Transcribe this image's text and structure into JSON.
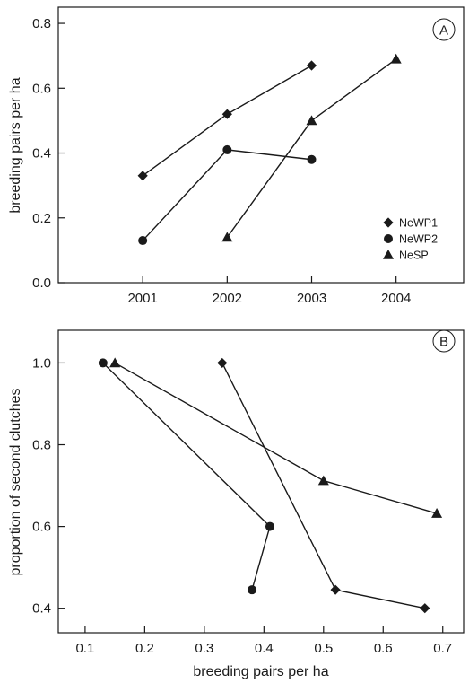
{
  "chart_data": [
    {
      "panel_label": "A",
      "type": "line",
      "xlabel": "",
      "ylabel": "breeding pairs per ha",
      "x_ticks": [
        "2001",
        "2002",
        "2003",
        "2004"
      ],
      "y_ticks": [
        "0.0",
        "0.2",
        "0.4",
        "0.6",
        "0.8"
      ],
      "xlim": [
        2000,
        2004.8
      ],
      "ylim": [
        0,
        0.85
      ],
      "legend_position": "right-middle",
      "series": [
        {
          "name": "NeWP1",
          "marker": "diamond",
          "points": [
            {
              "x": 2001,
              "y": 0.33
            },
            {
              "x": 2002,
              "y": 0.52
            },
            {
              "x": 2003,
              "y": 0.67
            }
          ]
        },
        {
          "name": "NeWP2",
          "marker": "circle",
          "points": [
            {
              "x": 2001,
              "y": 0.13
            },
            {
              "x": 2002,
              "y": 0.41
            },
            {
              "x": 2003,
              "y": 0.38
            }
          ]
        },
        {
          "name": "NeSP",
          "marker": "triangle",
          "points": [
            {
              "x": 2002,
              "y": 0.14
            },
            {
              "x": 2003,
              "y": 0.5
            },
            {
              "x": 2004,
              "y": 0.69
            }
          ]
        }
      ]
    },
    {
      "panel_label": "B",
      "type": "line",
      "xlabel": "breeding pairs per ha",
      "ylabel": "proportion of second clutches",
      "x_ticks": [
        "0.1",
        "0.2",
        "0.3",
        "0.4",
        "0.5",
        "0.6",
        "0.7"
      ],
      "y_ticks": [
        "0.4",
        "0.6",
        "0.8",
        "1.0"
      ],
      "xlim": [
        0.055,
        0.735
      ],
      "ylim": [
        0.34,
        1.08
      ],
      "series": [
        {
          "name": "NeWP1",
          "marker": "diamond",
          "points": [
            {
              "x": 0.33,
              "y": 1.0
            },
            {
              "x": 0.52,
              "y": 0.445
            },
            {
              "x": 0.67,
              "y": 0.4
            }
          ]
        },
        {
          "name": "NeWP2",
          "marker": "circle",
          "points": [
            {
              "x": 0.13,
              "y": 1.0
            },
            {
              "x": 0.41,
              "y": 0.6
            },
            {
              "x": 0.38,
              "y": 0.445
            }
          ]
        },
        {
          "name": "NeSP",
          "marker": "triangle",
          "points": [
            {
              "x": 0.15,
              "y": 1.0
            },
            {
              "x": 0.5,
              "y": 0.712
            },
            {
              "x": 0.69,
              "y": 0.632
            }
          ]
        }
      ]
    }
  ]
}
